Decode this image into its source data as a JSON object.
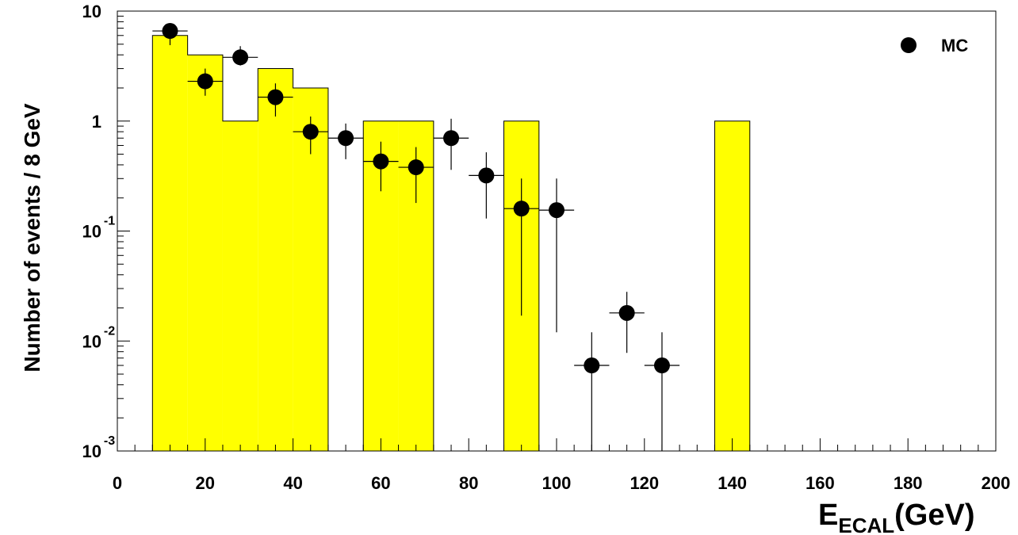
{
  "chart_data": {
    "type": "bar",
    "xlabel_main": "E",
    "xlabel_sub": "ECAL",
    "xlabel_unit": "(GeV)",
    "ylabel": "Number of events / 8 GeV",
    "xlim": [
      0,
      200
    ],
    "ylim": [
      0.001,
      10
    ],
    "yscale": "log",
    "x_tick_labels": [
      "0",
      "20",
      "40",
      "60",
      "80",
      "100",
      "120",
      "140",
      "160",
      "180",
      "200"
    ],
    "y_tick_labels": [
      {
        "base": "10",
        "exp": "-3"
      },
      {
        "base": "10",
        "exp": "-2"
      },
      {
        "base": "10",
        "exp": "-1"
      },
      {
        "base": "1",
        "exp": ""
      },
      {
        "base": "10",
        "exp": ""
      }
    ],
    "legend": {
      "placement": "top-right",
      "entries": [
        "MC"
      ]
    },
    "histogram": {
      "bin_width": 8,
      "color": "#ffff00",
      "bins": [
        {
          "x0": 8,
          "y": 6
        },
        {
          "x0": 16,
          "y": 4
        },
        {
          "x0": 24,
          "y": 1
        },
        {
          "x0": 32,
          "y": 3
        },
        {
          "x0": 40,
          "y": 2
        },
        {
          "x0": 56,
          "y": 1
        },
        {
          "x0": 64,
          "y": 1
        },
        {
          "x0": 88,
          "y": 1
        },
        {
          "x0": 136,
          "y": 1
        }
      ]
    },
    "series": [
      {
        "name": "MC",
        "points": [
          {
            "x": 12,
            "y": 6.6,
            "ylo": 4.9,
            "yhi": 7.5
          },
          {
            "x": 20,
            "y": 2.3,
            "ylo": 1.7,
            "yhi": 3.0
          },
          {
            "x": 28,
            "y": 3.8,
            "ylo": 3.2,
            "yhi": 4.8
          },
          {
            "x": 36,
            "y": 1.65,
            "ylo": 1.1,
            "yhi": 2.2
          },
          {
            "x": 44,
            "y": 0.8,
            "ylo": 0.5,
            "yhi": 1.1
          },
          {
            "x": 52,
            "y": 0.7,
            "ylo": 0.45,
            "yhi": 0.95
          },
          {
            "x": 60,
            "y": 0.43,
            "ylo": 0.23,
            "yhi": 0.65
          },
          {
            "x": 68,
            "y": 0.38,
            "ylo": 0.18,
            "yhi": 0.58
          },
          {
            "x": 76,
            "y": 0.7,
            "ylo": 0.36,
            "yhi": 1.05
          },
          {
            "x": 84,
            "y": 0.32,
            "ylo": 0.13,
            "yhi": 0.52
          },
          {
            "x": 92,
            "y": 0.16,
            "ylo": 0.017,
            "yhi": 0.3
          },
          {
            "x": 100,
            "y": 0.155,
            "ylo": 0.012,
            "yhi": 0.3
          },
          {
            "x": 108,
            "y": 0.006,
            "ylo": 0.001,
            "yhi": 0.012
          },
          {
            "x": 116,
            "y": 0.018,
            "ylo": 0.0078,
            "yhi": 0.028
          },
          {
            "x": 124,
            "y": 0.006,
            "ylo": 0.001,
            "yhi": 0.012
          }
        ]
      }
    ]
  }
}
